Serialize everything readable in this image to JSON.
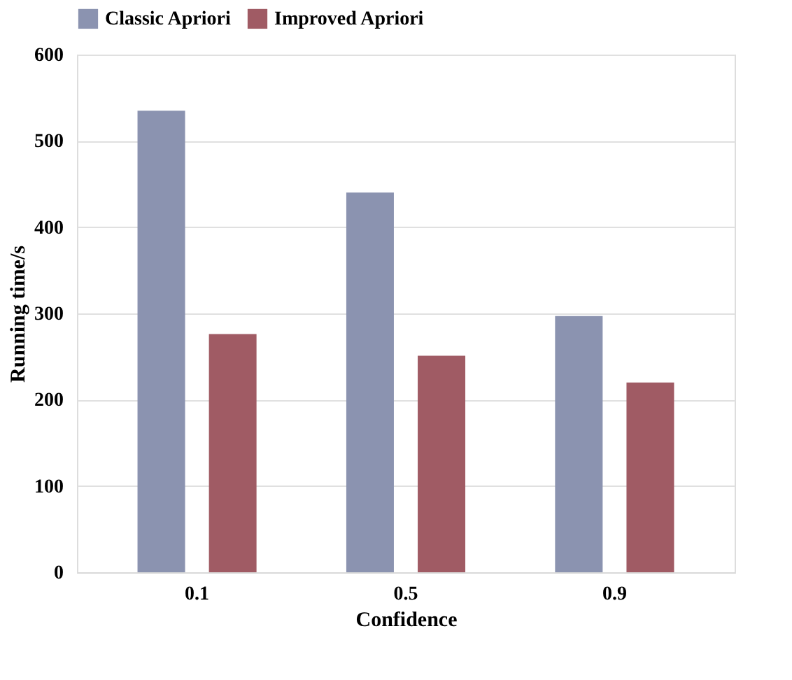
{
  "chart_data": {
    "type": "bar",
    "xlabel": "Confidence",
    "ylabel": "Running time/s",
    "categories": [
      "0.1",
      "0.5",
      "0.9"
    ],
    "series": [
      {
        "name": "Classic Apriori",
        "color": "#8b93b0",
        "values": [
          535,
          440,
          297
        ]
      },
      {
        "name": "Improved Apriori",
        "color": "#a05b64",
        "values": [
          276,
          251,
          220
        ]
      }
    ],
    "ylim": [
      0,
      600
    ],
    "yticks": [
      0,
      100,
      200,
      300,
      400,
      500,
      600
    ],
    "grid": "y",
    "legend": "top"
  }
}
